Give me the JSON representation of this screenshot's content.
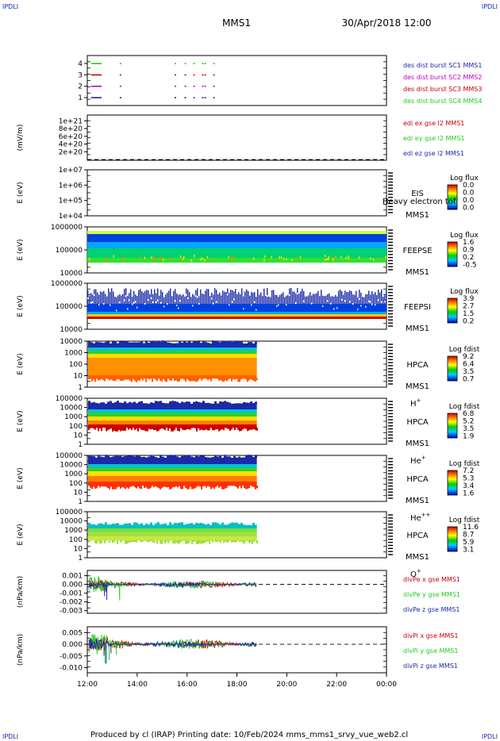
{
  "header": {
    "mission": "MMS1",
    "datetime": "30/Apr/2018 12:00"
  },
  "corner_label": "IPDLI",
  "footer": "Produced by cl (IRAP)   Printing date: 10/Feb/2024   mms_mms1_srvy_vue_web2.cl",
  "colors": {
    "blue": "#1a2aa8",
    "magenta": "#c000c0",
    "red": "#cc0000",
    "green": "#22cc22",
    "orange": "#ff8800",
    "yellow": "#ffe000",
    "cyan": "#00d8d8"
  },
  "chart_data": {
    "type": "multi-panel time series / spectrogram stack",
    "x": {
      "range": [
        "12:00",
        "00:00"
      ],
      "ticks": [
        "12:00",
        "14:00",
        "16:00",
        "18:00",
        "20:00",
        "22:00",
        "00:00"
      ],
      "tick_hours": [
        0,
        2,
        4,
        6,
        8,
        10,
        12
      ],
      "data_end_hour": 6.8
    },
    "panels": [
      {
        "id": "burst",
        "type": "event-marks",
        "ylabel": "",
        "ticks": [
          "1",
          "2",
          "3",
          "4"
        ],
        "series": [
          {
            "name": "des dist burst SC1 MMS1",
            "color": "#1a2aa8",
            "level": 1,
            "marks": [
              0.15,
              0.35,
              1.3,
              3.5,
              3.9,
              4.25,
              4.6,
              4.7,
              5.05
            ]
          },
          {
            "name": "des dist burst SC2 MMS2",
            "color": "#c000c0",
            "level": 2,
            "marks": [
              0.15,
              0.35,
              1.3,
              3.5,
              3.9,
              4.25,
              4.6,
              4.7,
              5.05
            ]
          },
          {
            "name": "des dist burst SC3 MMS3",
            "color": "#cc0000",
            "level": 3,
            "marks": [
              0.15,
              0.35,
              1.3,
              3.5,
              3.9,
              4.25,
              4.6,
              4.7,
              5.05
            ]
          },
          {
            "name": "des dist burst SC4 MMS4",
            "color": "#22cc22",
            "level": 4,
            "marks": [
              0.15,
              0.35,
              1.3,
              3.5,
              3.9,
              4.25,
              4.6,
              4.7,
              5.05
            ]
          }
        ]
      },
      {
        "id": "edi",
        "type": "line",
        "ylabel": "(mV/m)",
        "ticks": [
          "2e+20",
          "4e+20",
          "6e+20",
          "8e+20",
          "1e+21"
        ],
        "tick_values": [
          2e+20,
          4e+20,
          6e+20,
          8e+20,
          1e+21
        ],
        "ylim": [
          -2e+19,
          1.15e+21
        ],
        "zero_line": true,
        "series": [
          {
            "name": "edi ex gse l2 MMS1",
            "color": "#cc0000"
          },
          {
            "name": "edi ey gse l2 MMS1",
            "color": "#22cc22"
          },
          {
            "name": "edi ez gse l2 MMS1",
            "color": "#1a2aa8"
          }
        ]
      },
      {
        "id": "eis",
        "type": "spectrogram",
        "ylabel": "E (eV)",
        "ticks": [
          "1e+04",
          "1e+05",
          "1e+06",
          "1e+07"
        ],
        "instrument": [
          "EIS",
          "MMS1"
        ],
        "species": "",
        "overlay_text": "Heavy electron tof",
        "colorbar": {
          "title": "Log flux",
          "values": [
            "0.0",
            "0.0",
            "0.0",
            "0.0"
          ]
        },
        "empty": true
      },
      {
        "id": "feepse",
        "type": "spectrogram",
        "ylabel": "E (eV)",
        "ticks": [
          "10000",
          "100000",
          "1000000"
        ],
        "instrument": [
          "FEEPSE",
          "MMS1"
        ],
        "species": "",
        "colorbar": {
          "title": "Log flux",
          "values": [
            "1.6",
            "0.9",
            "0.2",
            "-0.5"
          ]
        }
      },
      {
        "id": "feepsi",
        "type": "spectrogram",
        "ylabel": "E (eV)",
        "ticks": [
          "10000",
          "100000",
          "1000000"
        ],
        "instrument": [
          "FEEPSI",
          "MMS1"
        ],
        "species": "",
        "colorbar": {
          "title": "Log flux",
          "values": [
            "3.9",
            "2.7",
            "1.5",
            "0.2"
          ]
        }
      },
      {
        "id": "hpca-h",
        "type": "spectrogram",
        "ylabel": "E (eV)",
        "ticks": [
          "1",
          "10",
          "100",
          "1000",
          "10000"
        ],
        "instrument": [
          "HPCA",
          "MMS1"
        ],
        "species": "H",
        "species_sup": "+",
        "colorbar": {
          "title": "Log fdist",
          "values": [
            "9.2",
            "6.4",
            "3.5",
            "0.7"
          ]
        }
      },
      {
        "id": "hpca-he",
        "type": "spectrogram",
        "ylabel": "E (eV)",
        "ticks": [
          "1",
          "10",
          "100",
          "1000",
          "10000",
          "100000"
        ],
        "instrument": [
          "HPCA",
          "MMS1"
        ],
        "species": "He",
        "species_sup": "+",
        "colorbar": {
          "title": "Log fdist",
          "values": [
            "6.8",
            "5.2",
            "3.5",
            "1.9"
          ]
        }
      },
      {
        "id": "hpca-he2",
        "type": "spectrogram",
        "ylabel": "E (eV)",
        "ticks": [
          "1",
          "10",
          "100",
          "1000",
          "10000",
          "100000"
        ],
        "instrument": [
          "HPCA",
          "MMS1"
        ],
        "species": "He",
        "species_sup": "++",
        "colorbar": {
          "title": "Log fdist",
          "values": [
            "7.2",
            "5.3",
            "3.4",
            "1.6"
          ]
        }
      },
      {
        "id": "hpca-o",
        "type": "spectrogram",
        "ylabel": "E (eV)",
        "ticks": [
          "1",
          "10",
          "100",
          "1000",
          "10000",
          "100000"
        ],
        "instrument": [
          "HPCA",
          "MMS1"
        ],
        "species": "O",
        "species_sup": "+",
        "colorbar": {
          "title": "Log fdist",
          "values": [
            "11.6",
            "8.7",
            "5.9",
            "3.1"
          ]
        }
      },
      {
        "id": "dive",
        "type": "line",
        "ylabel": "(nPa/km)",
        "ticks": [
          "-0.003",
          "-0.002",
          "-0.001",
          "0.000",
          "0.001"
        ],
        "tick_values": [
          -0.003,
          -0.002,
          -0.001,
          0.0,
          0.001
        ],
        "ylim": [
          -0.0033,
          0.0016
        ],
        "zero_line": true,
        "series": [
          {
            "name": "divPe x gse MMS1",
            "color": "#cc0000"
          },
          {
            "name": "divPe y gse MMS1",
            "color": "#22cc22"
          },
          {
            "name": "divPe z gse MMS1",
            "color": "#1a2aa8"
          }
        ]
      },
      {
        "id": "divi",
        "type": "line",
        "ylabel": "(nPa/km)",
        "ticks": [
          "-0.010",
          "-0.005",
          "0.000",
          "0.005"
        ],
        "tick_values": [
          -0.01,
          -0.005,
          0.0,
          0.005
        ],
        "ylim": [
          -0.0122,
          0.0075
        ],
        "zero_line": true,
        "series": [
          {
            "name": "divPi x gse MMS1",
            "color": "#cc0000"
          },
          {
            "name": "divPi y gse MMS1",
            "color": "#22cc22"
          },
          {
            "name": "divPi z gse MMS1",
            "color": "#1a2aa8"
          }
        ]
      }
    ]
  }
}
